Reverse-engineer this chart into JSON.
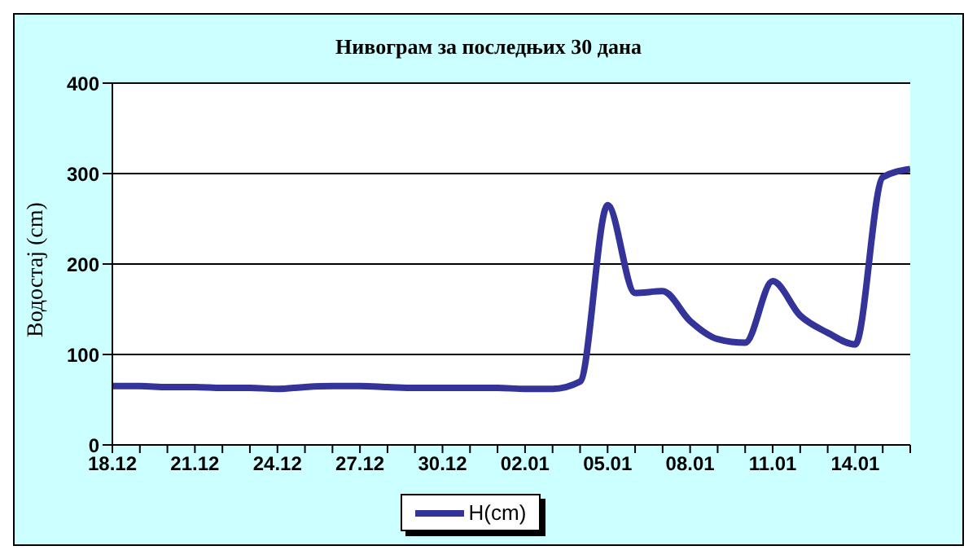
{
  "chart_data": {
    "type": "line",
    "title": "Нивограм за последњих 30 дана",
    "ylabel": "Водостај (cm)",
    "categories": [
      "18.12",
      null,
      null,
      "21.12",
      null,
      null,
      "24.12",
      null,
      null,
      "27.12",
      null,
      null,
      "30.12",
      null,
      null,
      "02.01",
      null,
      null,
      "05.01",
      null,
      null,
      "08.01",
      null,
      null,
      "11.01",
      null,
      null,
      "14.01",
      null,
      null
    ],
    "series": [
      {
        "name": "H(cm)",
        "color": "#333399",
        "values": [
          65,
          65,
          64,
          64,
          63,
          63,
          62,
          64,
          65,
          65,
          64,
          63,
          63,
          63,
          63,
          62,
          62,
          70,
          265,
          168,
          170,
          137,
          117,
          113,
          181,
          143,
          124,
          111,
          296,
          305
        ]
      }
    ],
    "ylim": [
      0,
      400
    ],
    "yticks": [
      0,
      100,
      200,
      300,
      400
    ],
    "grid": "y",
    "legend": "bottom",
    "marker": "none",
    "line_style": "solid"
  }
}
